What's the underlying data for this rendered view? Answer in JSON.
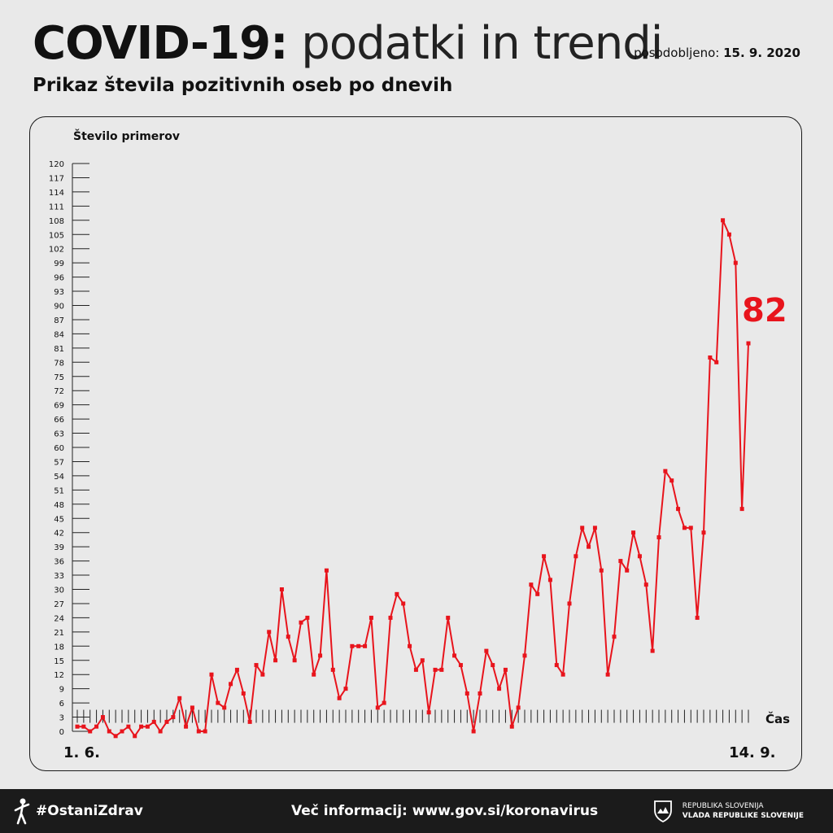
{
  "header": {
    "title_bold": "COVID-19:",
    "title_light": "podatki in trendi",
    "updated_label": "posodobljeno:",
    "updated_date": "15. 9. 2020",
    "subtitle": "Prikaz števila pozitivnih oseb po dnevih"
  },
  "footer": {
    "hashtag": "#OstaniZdrav",
    "info": "Več informacij: www.gov.si/koronavirus",
    "gov_line1": "REPUBLIKA SLOVENIJA",
    "gov_line2": "VLADA REPUBLIKE SLOVENIJE"
  },
  "colors": {
    "series": "#e8141c",
    "background": "#e9e9e9",
    "footer": "#1b1b1b"
  },
  "chart_data": {
    "type": "line",
    "ylabel": "Število primerov",
    "xlabel": "Čas",
    "x_start_label": "1. 6.",
    "x_end_label": "14. 9.",
    "ylim": [
      0,
      120
    ],
    "yticks": [
      0,
      3,
      6,
      9,
      12,
      15,
      18,
      21,
      24,
      27,
      30,
      33,
      36,
      39,
      42,
      45,
      48,
      51,
      54,
      57,
      60,
      63,
      66,
      69,
      72,
      75,
      78,
      81,
      84,
      87,
      90,
      93,
      96,
      99,
      102,
      105,
      108,
      111,
      114,
      117,
      120
    ],
    "last_value_label": "82",
    "series": [
      {
        "values": [
          1,
          1,
          0,
          1,
          3,
          0,
          -1,
          0,
          1,
          -1,
          1,
          1,
          2,
          0,
          2,
          3,
          7,
          1,
          5,
          0,
          0,
          12,
          6,
          5,
          10,
          13,
          8,
          2,
          14,
          12,
          21,
          15,
          30,
          20,
          15,
          23,
          24,
          12,
          16,
          34,
          13,
          7,
          9,
          18,
          18,
          18,
          24,
          5,
          6,
          24,
          29,
          27,
          18,
          13,
          15,
          4,
          13,
          13,
          24,
          16,
          14,
          8,
          0,
          8,
          17,
          14,
          9,
          13,
          1,
          5,
          16,
          31,
          29,
          37,
          32,
          14,
          12,
          27,
          37,
          43,
          39,
          43,
          34,
          12,
          20,
          36,
          34,
          42,
          37,
          31,
          17,
          41,
          55,
          53,
          47,
          43,
          43,
          24,
          42,
          79,
          78,
          108,
          105,
          99,
          47,
          82
        ]
      }
    ]
  }
}
